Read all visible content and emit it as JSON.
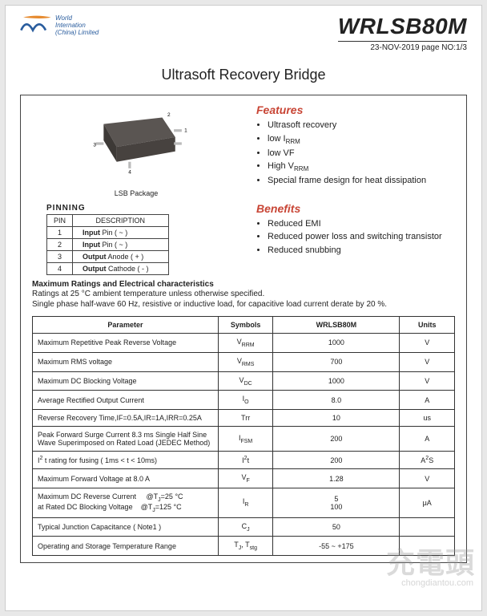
{
  "header": {
    "company_line1": "World",
    "company_line2": "Internation",
    "company_line3": "(China) Limited",
    "part_number": "WRLSB80M",
    "date_page": "23-NOV-2019 page NO:1/3"
  },
  "title": "Ultrasoft Recovery Bridge",
  "package_label": "LSB  Package",
  "pinning": {
    "title": "PINNING",
    "headers": [
      "PIN",
      "DESCRIPTION"
    ],
    "rows": [
      [
        "1",
        "Input Pin ( ~ )"
      ],
      [
        "2",
        "Input Pin ( ~ )"
      ],
      [
        "3",
        "Output Anode ( + )"
      ],
      [
        "4",
        "Output Cathode ( - )"
      ]
    ]
  },
  "features": {
    "title": "Features",
    "items": [
      "Ultrasoft recovery",
      "low I<sub>RRM</sub>",
      "low VF",
      "High V<sub>RRM</sub>",
      "Special frame design for heat dissipation"
    ]
  },
  "benefits": {
    "title": "Benefits",
    "items": [
      "Reduced EMI",
      "Reduced power loss and switching transistor",
      "Reduced snubbing"
    ]
  },
  "max_ratings": {
    "header": "Maximum Ratings and Electrical characteristics",
    "note1": "Ratings at 25 °C ambient temperature unless otherwise specified.",
    "note2": "Single phase half-wave 60 Hz, resistive or inductive load, for capacitive load current derate by 20 %."
  },
  "ratings_table": {
    "headers": [
      "Parameter",
      "Symbols",
      "WRLSB80M",
      "Units"
    ],
    "col_widths": [
      "44%",
      "13%",
      "30%",
      "13%"
    ],
    "rows": [
      {
        "param": "Maximum Repetitive Peak Reverse Voltage",
        "sym": "V<sub>RRM</sub>",
        "val": "1000",
        "unit": "V"
      },
      {
        "param": "Maximum RMS voltage",
        "sym": "V<sub>RMS</sub>",
        "val": "700",
        "unit": "V"
      },
      {
        "param": "Maximum DC Blocking Voltage",
        "sym": "V<sub>DC</sub>",
        "val": "1000",
        "unit": "V"
      },
      {
        "param": "Average Rectified Output Current",
        "sym": "I<sub>O</sub>",
        "val": "8.0",
        "unit": "A"
      },
      {
        "param": "Reverse Recovery Time,IF=0.5A,IR=1A,IRR=0.25A",
        "sym": "Trr",
        "val": "10",
        "unit": "us"
      },
      {
        "param": "Peak Forward Surge Current 8.3 ms Single Half Sine Wave Superimposed on Rated Load (JEDEC Method)",
        "sym": "I<sub>FSM</sub>",
        "val": "200",
        "unit": "A"
      },
      {
        "param": "I<sup>2</sup> t rating for fusing ( 1ms &lt;  t &lt; 10ms)",
        "sym": "I<sup>2</sup>t",
        "val": "200",
        "unit": "A<sup>2</sup>S"
      },
      {
        "param": "Maximum  Forward Voltage at 8.0 A",
        "sym": "V<sub>F</sub>",
        "val": "1.28",
        "unit": "V"
      },
      {
        "param": "Maximum DC Reverse Current&nbsp;&nbsp;&nbsp;&nbsp;&nbsp;@T<sub>J</sub>=25 °C<br>at Rated DC Blocking Voltage&nbsp;&nbsp;&nbsp;&nbsp;@T<sub>J</sub>=125 °C",
        "sym": "I<sub>R</sub>",
        "val": "5<br>100",
        "unit": "μA"
      },
      {
        "param": "Typical Junction Capacitance ( Note1 )",
        "sym": "C<sub>J</sub>",
        "val": "50",
        "unit": ""
      },
      {
        "param": "Operating and Storage Temperature Range",
        "sym": "T<sub>J</sub>, T<sub>stg</sub>",
        "val": "-55 ~ +175",
        "unit": ""
      }
    ]
  },
  "watermark": {
    "main": "充電頭",
    "sub": "chongdiantou.com"
  },
  "colors": {
    "accent": "#c84535",
    "logo_blue": "#2a5d9e",
    "logo_orange": "#e68a2e",
    "chip_top": "#5a5552",
    "chip_side": "#3d3936"
  }
}
